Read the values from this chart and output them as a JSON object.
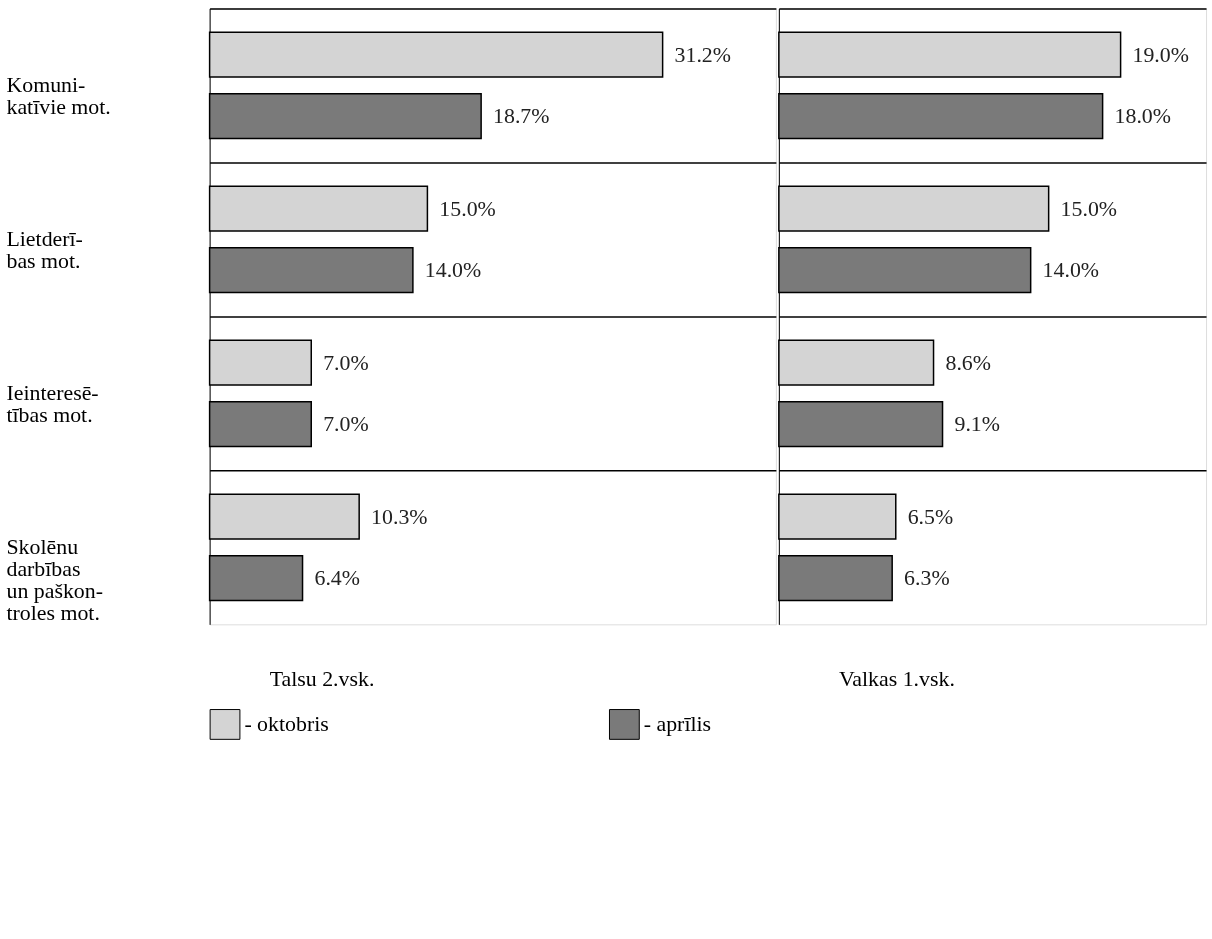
{
  "chart_data": [
    {
      "type": "bar",
      "orientation": "horizontal",
      "xlabel": "Talsu 2.vsk.",
      "categories": [
        "Komuni-\nkatīvie mot.",
        "Lietderī-\nbas mot.",
        "Ieinteresē-\ntības mot.",
        "Skolēnu\ndarbības\nun paškon-\ntroles mot."
      ],
      "grid": "y",
      "legend": "bottom",
      "tick_labels": "y",
      "series": [
        {
          "name": "- oktobris",
          "color": "#d4d4d4",
          "values": [
            31.2,
            15.0,
            7.0,
            10.3
          ],
          "value_labels": [
            "31.2%",
            "15.0%",
            "7.0%",
            "10.3%"
          ]
        },
        {
          "name": "- aprīlis",
          "color": "#7a7a7a",
          "values": [
            18.7,
            14.0,
            7.0,
            6.4
          ],
          "value_labels": [
            "18.7%",
            "14.0%",
            "7.0%",
            "6.4%"
          ]
        }
      ]
    },
    {
      "type": "bar",
      "orientation": "horizontal",
      "xlabel": "Valkas 1.vsk.",
      "categories": [
        null,
        null,
        null,
        null
      ],
      "grid": "y",
      "legend": "bottom",
      "tick_labels": false,
      "series": [
        {
          "name": "- oktobris",
          "color": "#d4d4d4",
          "values": [
            19.0,
            15.0,
            8.6,
            6.5
          ],
          "value_labels": [
            "19.0%",
            "15.0%",
            "8.6%",
            "6.5%"
          ]
        },
        {
          "name": "- aprīlis",
          "color": "#7a7a7a",
          "values": [
            18.0,
            14.0,
            9.1,
            6.3
          ],
          "value_labels": [
            "18.0%",
            "14.0%",
            "9.1%",
            "6.3%"
          ]
        }
      ]
    }
  ]
}
